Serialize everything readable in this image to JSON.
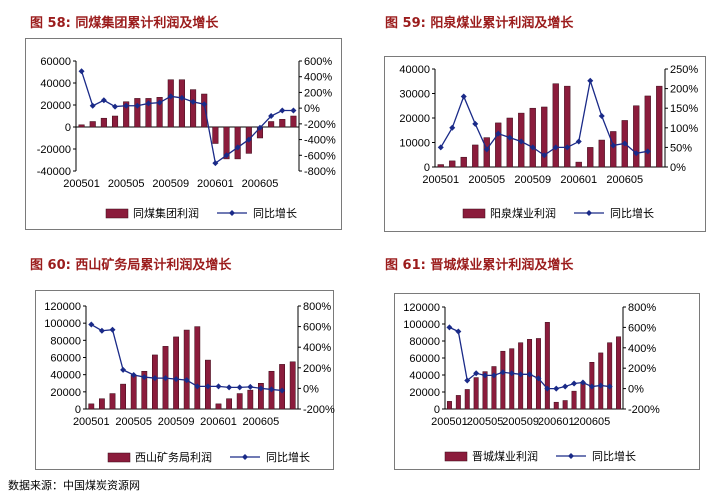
{
  "source": "数据来源：中国煤炭资源网",
  "colors": {
    "bar": "#8b1c3c",
    "line": "#1a2a88"
  },
  "chart_data": [
    {
      "type": "bar",
      "figure_label": "图 58:",
      "title": "同煤集团累计利润及增长",
      "x_tick_labels": [
        "200501",
        "200505",
        "200509",
        "200601",
        "200605"
      ],
      "left_axis": {
        "ylim": [
          -40000,
          60000
        ],
        "ticks": [
          "60000",
          "40000",
          "20000",
          "0",
          "-20000",
          "-40000"
        ]
      },
      "right_axis": {
        "ylim": [
          -800,
          600
        ],
        "ticks": [
          "600%",
          "400%",
          "200%",
          "0%",
          "-200%",
          "-400%",
          "-600%",
          "-800%"
        ]
      },
      "series": [
        {
          "name": "同煤集团利润",
          "kind": "bar",
          "values": [
            2000,
            5000,
            8000,
            10000,
            23000,
            26000,
            26000,
            27000,
            43000,
            43000,
            34000,
            30000,
            -15000,
            -29000,
            -29000,
            -24000,
            -10000,
            5000,
            7000,
            10000
          ]
        },
        {
          "name": "同比增长",
          "kind": "line",
          "values": [
            470,
            30,
            100,
            20,
            30,
            30,
            60,
            70,
            150,
            130,
            80,
            50,
            -700,
            -600,
            -500,
            -400,
            -250,
            -100,
            -30,
            -30
          ]
        }
      ]
    },
    {
      "type": "bar",
      "figure_label": "图 59:",
      "title": "阳泉煤业累计利润及增长",
      "x_tick_labels": [
        "200501",
        "200505",
        "200509",
        "200601",
        "200605"
      ],
      "left_axis": {
        "ylim": [
          0,
          40000
        ],
        "ticks": [
          "40000",
          "30000",
          "20000",
          "10000",
          "0"
        ]
      },
      "right_axis": {
        "ylim": [
          0,
          250
        ],
        "ticks": [
          "250%",
          "200%",
          "150%",
          "100%",
          "50%",
          "0%"
        ]
      },
      "series": [
        {
          "name": "阳泉煤业利润",
          "kind": "bar",
          "values": [
            1000,
            2500,
            4000,
            9000,
            12000,
            18000,
            20000,
            22000,
            24000,
            24500,
            34000,
            33000,
            2000,
            8000,
            11000,
            14500,
            19000,
            25000,
            29000,
            33000
          ]
        },
        {
          "name": "同比增长",
          "kind": "line",
          "values": [
            50,
            100,
            180,
            110,
            45,
            85,
            75,
            65,
            50,
            30,
            50,
            50,
            65,
            220,
            130,
            55,
            60,
            35,
            40
          ]
        }
      ]
    },
    {
      "type": "bar",
      "figure_label": "图 60:",
      "title": "西山矿务局累计利润及增长",
      "x_tick_labels": [
        "200501",
        "200505",
        "200509",
        "200601",
        "200605"
      ],
      "left_axis": {
        "ylim": [
          0,
          120000
        ],
        "ticks": [
          "120000",
          "100000",
          "80000",
          "60000",
          "40000",
          "20000",
          "0"
        ]
      },
      "right_axis": {
        "ylim": [
          -200,
          800
        ],
        "ticks": [
          "800%",
          "600%",
          "400%",
          "200%",
          "0%",
          "-200%"
        ]
      },
      "series": [
        {
          "name": "西山矿务局利润",
          "kind": "bar",
          "values": [
            6000,
            12000,
            18000,
            29000,
            39000,
            44000,
            63000,
            73000,
            84000,
            92000,
            96000,
            57000,
            6000,
            12000,
            18000,
            22000,
            30000,
            44000,
            52000,
            55000
          ]
        },
        {
          "name": "同比增长",
          "kind": "line",
          "values": [
            620,
            560,
            570,
            180,
            130,
            110,
            100,
            100,
            90,
            80,
            20,
            20,
            20,
            10,
            10,
            15,
            0,
            -10,
            -20
          ]
        }
      ]
    },
    {
      "type": "bar",
      "figure_label": "图 61:",
      "title": "晋城煤业累计利润及增长",
      "x_tick_labels": [
        "200501",
        "200505",
        "200509",
        "200601",
        "200605"
      ],
      "left_axis": {
        "ylim": [
          0,
          120000
        ],
        "ticks": [
          "120000",
          "100000",
          "80000",
          "60000",
          "40000",
          "20000",
          "0"
        ]
      },
      "right_axis": {
        "ylim": [
          -200,
          800
        ],
        "ticks": [
          "800%",
          "600%",
          "400%",
          "200%",
          "0%",
          "-200%"
        ]
      },
      "series": [
        {
          "name": "晋城煤业利润",
          "kind": "bar",
          "values": [
            9000,
            16000,
            23000,
            37000,
            44000,
            50000,
            68000,
            71000,
            78000,
            82000,
            83000,
            102000,
            8000,
            10000,
            21000,
            30000,
            55000,
            66000,
            78000,
            85000
          ]
        },
        {
          "name": "同比增长",
          "kind": "line",
          "values": [
            600,
            560,
            80,
            150,
            130,
            130,
            160,
            150,
            140,
            140,
            100,
            0,
            0,
            20,
            50,
            60,
            20,
            30,
            20
          ]
        }
      ]
    }
  ]
}
